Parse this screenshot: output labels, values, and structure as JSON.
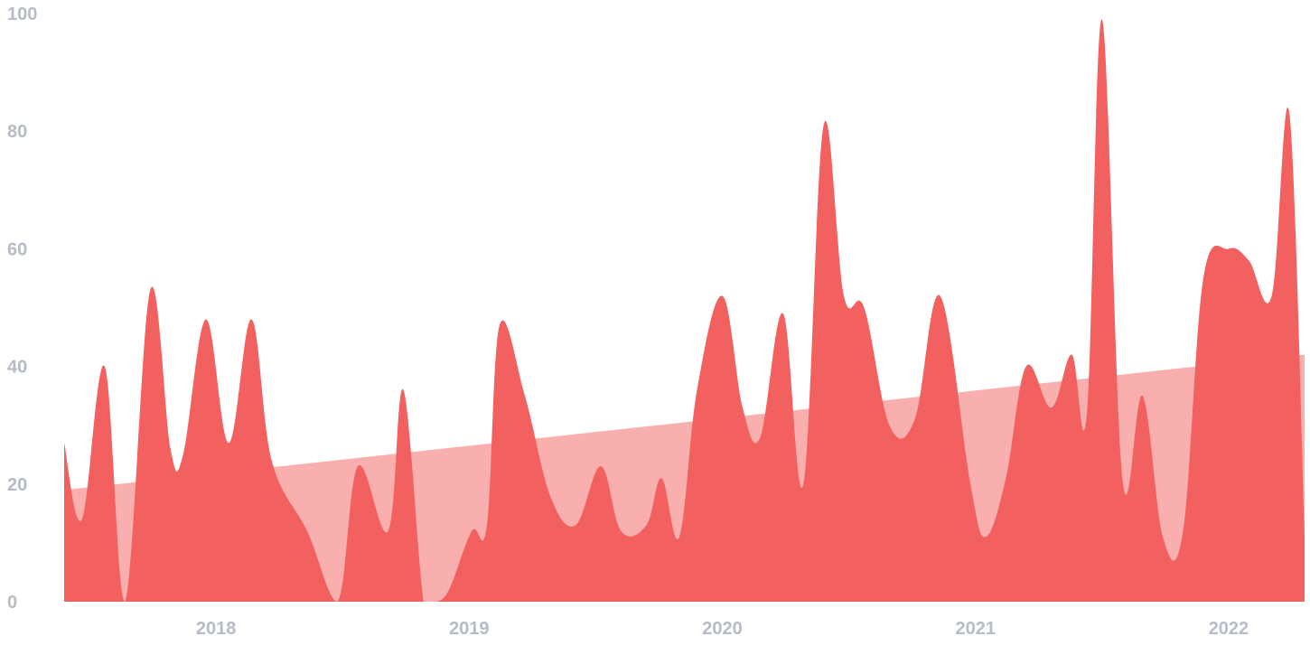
{
  "chart_data": {
    "type": "area",
    "title": "",
    "xlabel": "",
    "ylabel": "",
    "ylim": [
      0,
      100
    ],
    "y_ticks": [
      "0",
      "20",
      "40",
      "60",
      "80",
      "100"
    ],
    "x_ticks": [
      "2018",
      "2019",
      "2020",
      "2021",
      "2022"
    ],
    "x_tick_years": [
      2018,
      2019,
      2020,
      2021,
      2022
    ],
    "x_range": [
      2017.4,
      2022.3
    ],
    "grid": false,
    "colors": {
      "series": "#f26060",
      "trend": "#f8afae",
      "tick_text": "#b5bcc6"
    },
    "series": [
      {
        "x": [
          2017.4,
          2017.47,
          2017.56,
          2017.64,
          2017.74,
          2017.82,
          2017.87,
          2017.96,
          2018.05,
          2018.14,
          2018.22,
          2018.36,
          2018.48,
          2018.56,
          2018.68,
          2018.74,
          2018.82,
          2018.87,
          2018.92,
          2019.01,
          2019.07,
          2019.12,
          2019.22,
          2019.32,
          2019.42,
          2019.52,
          2019.6,
          2019.7,
          2019.76,
          2019.83,
          2019.9,
          2020.0,
          2020.08,
          2020.15,
          2020.24,
          2020.32,
          2020.4,
          2020.48,
          2020.56,
          2020.66,
          2020.76,
          2020.86,
          2020.98,
          2021.04,
          2021.12,
          2021.2,
          2021.3,
          2021.38,
          2021.44,
          2021.5,
          2021.58,
          2021.66,
          2021.74,
          2021.82,
          2021.9,
          2022.0,
          2022.08,
          2022.17,
          2022.24,
          2022.3
        ],
        "y": [
          27,
          14,
          40,
          0,
          53,
          26,
          25,
          48,
          27,
          48,
          24,
          12,
          0,
          23,
          12,
          36,
          0,
          0,
          2,
          12,
          13,
          47,
          35,
          18,
          13,
          23,
          12,
          13,
          21,
          11,
          36,
          52,
          33,
          28,
          49,
          20,
          81,
          52,
          50,
          30,
          31,
          52,
          20,
          11,
          21,
          40,
          33,
          42,
          32,
          99,
          21,
          35,
          11,
          12,
          55,
          60,
          58,
          52,
          83,
          11
        ]
      }
    ],
    "trend": {
      "x": [
        2017.4,
        2022.3
      ],
      "y": [
        19,
        42
      ]
    }
  }
}
